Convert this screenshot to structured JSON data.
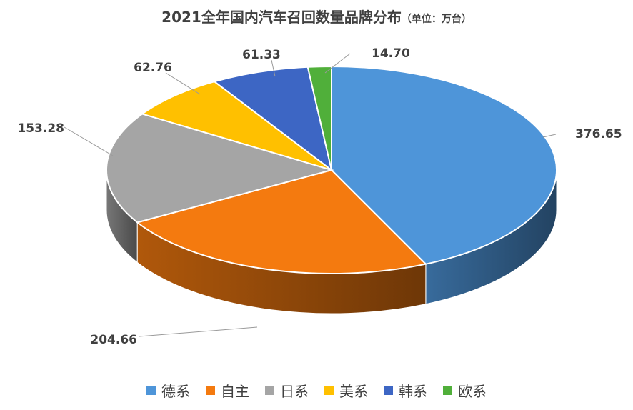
{
  "chart_data": {
    "type": "pie",
    "title": "2021全年国内汽车召回数量品牌分布",
    "subtitle": "（单位：万台）",
    "categories": [
      "德系",
      "自主",
      "日系",
      "美系",
      "韩系",
      "欧系"
    ],
    "values": [
      376.65,
      204.66,
      153.28,
      62.76,
      61.33,
      14.7
    ],
    "value_labels": [
      "376.65",
      "204.66",
      "153.28",
      "62.76",
      "61.33",
      "14.70"
    ],
    "colors": [
      "#4E95D9",
      "#F47A0F",
      "#A5A5A5",
      "#FFC000",
      "#3D66C4",
      "#50AF3A"
    ],
    "legend_position": "bottom",
    "style": "3d-pie"
  }
}
